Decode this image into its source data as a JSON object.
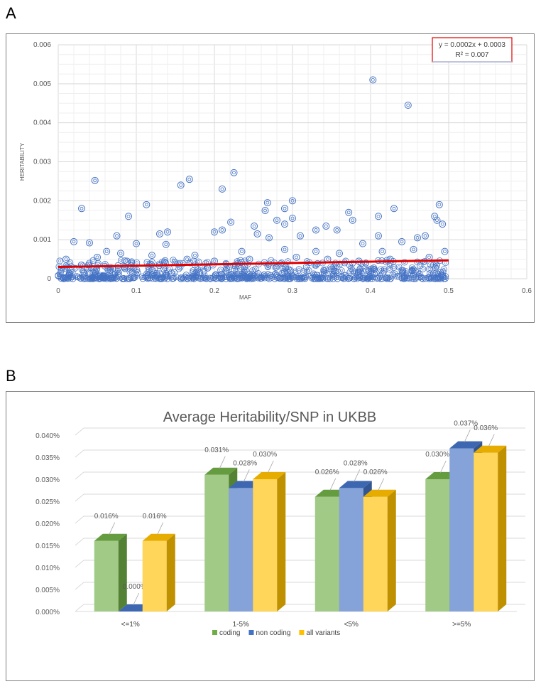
{
  "panels": {
    "a_label": "A",
    "b_label": "B"
  },
  "chart_data": [
    {
      "type": "scatter",
      "panel": "A",
      "title": "",
      "xlabel": "MAF",
      "ylabel": "HERITABILITY",
      "xlim": [
        0,
        0.6
      ],
      "ylim": [
        0,
        0.006
      ],
      "x_ticks": [
        "0",
        "0.1",
        "0.2",
        "0.3",
        "0.4",
        "0.5",
        "0.6"
      ],
      "y_ticks": [
        "0",
        "0.001",
        "0.002",
        "0.003",
        "0.004",
        "0.005",
        "0.006"
      ],
      "grid": true,
      "marker_color": "#4472c4",
      "trendline_color": "#e00000",
      "trendline": {
        "slope": 0.0002,
        "intercept": 0.0003
      },
      "equation_text": "y = 0.0002x + 0.0003",
      "r2_text": "R² = 0.007",
      "points": [
        [
          0.403,
          0.0051
        ],
        [
          0.448,
          0.00445
        ],
        [
          0.047,
          0.00252
        ],
        [
          0.225,
          0.00272
        ],
        [
          0.168,
          0.00255
        ],
        [
          0.157,
          0.0024
        ],
        [
          0.21,
          0.0023
        ],
        [
          0.3,
          0.002
        ],
        [
          0.268,
          0.00195
        ],
        [
          0.113,
          0.0019
        ],
        [
          0.03,
          0.0018
        ],
        [
          0.265,
          0.00175
        ],
        [
          0.29,
          0.0018
        ],
        [
          0.41,
          0.0016
        ],
        [
          0.372,
          0.0017
        ],
        [
          0.43,
          0.0018
        ],
        [
          0.488,
          0.0019
        ],
        [
          0.09,
          0.0016
        ],
        [
          0.482,
          0.0016
        ],
        [
          0.485,
          0.0015
        ],
        [
          0.492,
          0.0014
        ],
        [
          0.377,
          0.0015
        ],
        [
          0.3,
          0.00155
        ],
        [
          0.221,
          0.00145
        ],
        [
          0.28,
          0.0015
        ],
        [
          0.29,
          0.0014
        ],
        [
          0.251,
          0.00135
        ],
        [
          0.343,
          0.00135
        ],
        [
          0.14,
          0.0012
        ],
        [
          0.13,
          0.00115
        ],
        [
          0.2,
          0.0012
        ],
        [
          0.21,
          0.00125
        ],
        [
          0.075,
          0.0011
        ],
        [
          0.255,
          0.00115
        ],
        [
          0.31,
          0.0011
        ],
        [
          0.33,
          0.00125
        ],
        [
          0.357,
          0.00125
        ],
        [
          0.27,
          0.00105
        ],
        [
          0.41,
          0.0011
        ],
        [
          0.46,
          0.00105
        ],
        [
          0.47,
          0.0011
        ],
        [
          0.02,
          0.00095
        ],
        [
          0.04,
          0.00092
        ],
        [
          0.1,
          0.0009
        ],
        [
          0.138,
          0.00088
        ],
        [
          0.39,
          0.0009
        ],
        [
          0.44,
          0.00095
        ],
        [
          0.062,
          0.0007
        ],
        [
          0.08,
          0.00065
        ],
        [
          0.12,
          0.0006
        ],
        [
          0.175,
          0.0006
        ],
        [
          0.235,
          0.0007
        ],
        [
          0.29,
          0.00075
        ],
        [
          0.33,
          0.0007
        ],
        [
          0.36,
          0.00065
        ],
        [
          0.415,
          0.0007
        ],
        [
          0.455,
          0.00075
        ],
        [
          0.495,
          0.0007
        ],
        [
          0.01,
          0.0005
        ],
        [
          0.05,
          0.00055
        ],
        [
          0.088,
          0.00045
        ],
        [
          0.165,
          0.0005
        ],
        [
          0.2,
          0.00045
        ],
        [
          0.245,
          0.0005
        ],
        [
          0.305,
          0.00055
        ],
        [
          0.345,
          0.0005
        ],
        [
          0.385,
          0.00045
        ],
        [
          0.425,
          0.0005
        ],
        [
          0.475,
          0.00055
        ]
      ]
    },
    {
      "type": "bar",
      "panel": "B",
      "title": "Average Heritability/SNP in UKBB",
      "categories": [
        "<=1%",
        "1-5%",
        "<5%",
        ">=5%"
      ],
      "y_ticks": [
        "0.000%",
        "0.005%",
        "0.010%",
        "0.015%",
        "0.020%",
        "0.025%",
        "0.030%",
        "0.035%",
        "0.040%"
      ],
      "ylim": [
        0,
        0.04
      ],
      "grid": true,
      "legend_position": "bottom",
      "series": [
        {
          "name": "coding",
          "color": "#70ad47",
          "values": [
            0.016,
            0.031,
            0.026,
            0.03
          ],
          "labels": [
            "0.016%",
            "0.031%",
            "0.026%",
            "0.030%"
          ]
        },
        {
          "name": "non coding",
          "color": "#4472c4",
          "values": [
            0.0,
            0.028,
            0.028,
            0.037
          ],
          "labels": [
            "0.000%",
            "0.028%",
            "0.028%",
            "0.037%"
          ]
        },
        {
          "name": "all variants",
          "color": "#ffc000",
          "values": [
            0.016,
            0.03,
            0.026,
            0.036
          ],
          "labels": [
            "0.016%",
            "0.030%",
            "0.026%",
            "0.036%"
          ]
        }
      ]
    }
  ]
}
